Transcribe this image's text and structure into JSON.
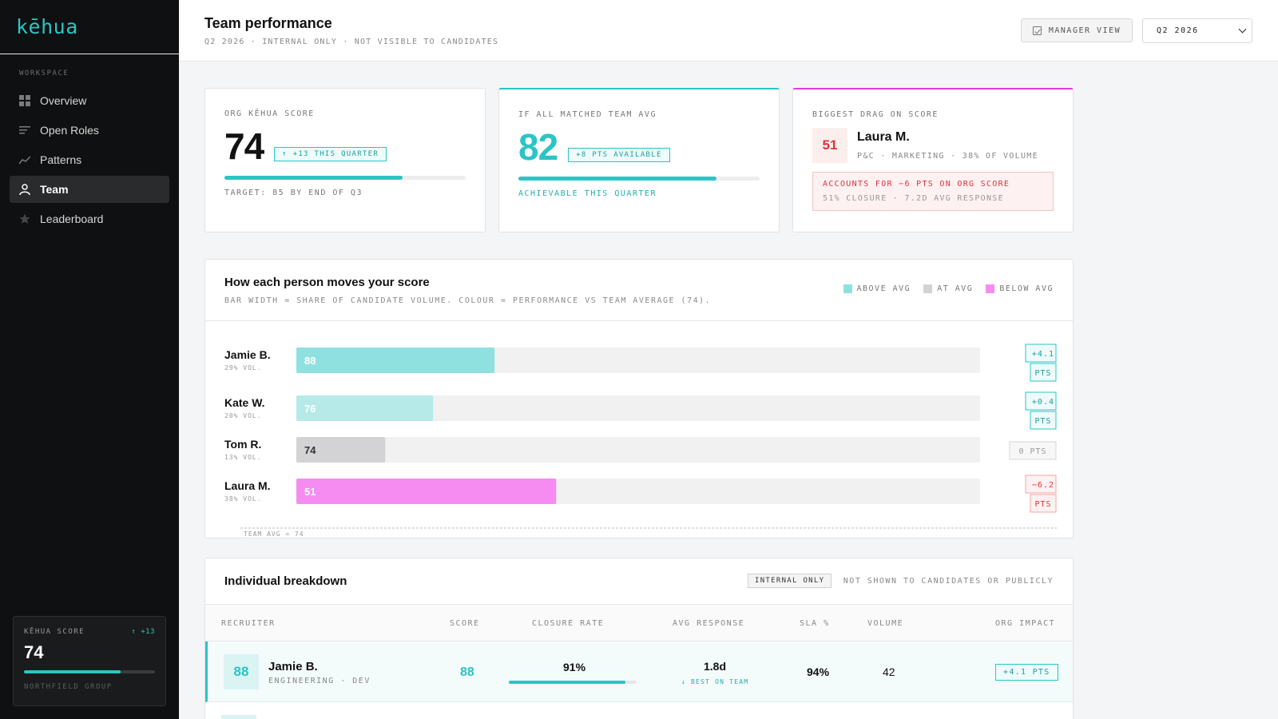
{
  "brand": {
    "name": "kēhua"
  },
  "sidebar": {
    "section_label": "WORKSPACE",
    "items": [
      {
        "label": "Overview",
        "icon": "grid-icon",
        "active": false
      },
      {
        "label": "Open Roles",
        "icon": "list-icon",
        "active": false
      },
      {
        "label": "Patterns",
        "icon": "trend-icon",
        "active": false
      },
      {
        "label": "Team",
        "icon": "user-icon",
        "active": true
      },
      {
        "label": "Leaderboard",
        "icon": "star-icon",
        "active": false
      }
    ],
    "score_box": {
      "label": "KĒHUA SCORE",
      "delta": "↑ +13",
      "value": "74",
      "progress": 0.74,
      "org": "NORTHFIELD GROUP"
    }
  },
  "header": {
    "title": "Team performance",
    "subtitle": "Q2 2026 · INTERNAL ONLY · NOT VISIBLE TO CANDIDATES",
    "manager_view_label": "MANAGER VIEW",
    "quarter_select": "Q2 2026"
  },
  "kpis": {
    "org_score": {
      "label": "ORG KĒHUA SCORE",
      "value": "74",
      "tag": "↑ +13 THIS QUARTER",
      "progress": 0.74,
      "footer": "TARGET: 85 BY END OF Q3"
    },
    "team_avg": {
      "label": "IF ALL MATCHED TEAM AVG",
      "value": "82",
      "tag": "+8 PTS AVAILABLE",
      "progress": 0.82,
      "footer": "ACHIEVABLE THIS QUARTER"
    },
    "biggest_drag": {
      "label": "BIGGEST DRAG ON SCORE",
      "score": "51",
      "name": "Laura M.",
      "meta": "P&C · MARKETING · 38% OF VOLUME",
      "alert_line1": "ACCOUNTS FOR −6 PTS ON ORG SCORE",
      "alert_line2": "51% CLOSURE · 7.2D AVG RESPONSE"
    }
  },
  "chart": {
    "title": "How each person moves your score",
    "subtitle": "BAR WIDTH = SHARE OF CANDIDATE VOLUME. COLOUR = PERFORMANCE VS TEAM AVERAGE (74).",
    "legend": [
      {
        "label": "ABOVE AVG",
        "color": "#8fe1df"
      },
      {
        "label": "AT AVG",
        "color": "#d3d3d6"
      },
      {
        "label": "BELOW AVG",
        "color": "#f68cf2"
      }
    ],
    "avg_label": "TEAM AVG = 74"
  },
  "chart_data": {
    "type": "bar",
    "categories": [
      "Jamie B.",
      "Kate W.",
      "Tom R.",
      "Laura M."
    ],
    "vol_labels": [
      "29% VOL.",
      "20% VOL.",
      "13% VOL.",
      "38% VOL."
    ],
    "volume_share": [
      29,
      20,
      13,
      38
    ],
    "scores": [
      88,
      76,
      74,
      51
    ],
    "impact_labels": [
      "+4.1 PTS",
      "+0.4 PTS",
      "0 PTS",
      "−6.2 PTS"
    ],
    "status": [
      "above",
      "above",
      "at",
      "below"
    ],
    "team_avg": 74,
    "xlim": [
      0,
      100
    ],
    "colors": {
      "above": "#8fe1df",
      "above_light": "#b5eae9",
      "at": "#d3d3d6",
      "below": "#f68cf2"
    }
  },
  "table": {
    "title": "Individual breakdown",
    "badge": "INTERNAL ONLY",
    "note": "NOT SHOWN TO CANDIDATES OR PUBLICLY",
    "columns": [
      "RECRUITER",
      "SCORE",
      "CLOSURE RATE",
      "AVG RESPONSE",
      "SLA %",
      "VOLUME",
      "ORG IMPACT"
    ],
    "rows": [
      {
        "score": "88",
        "name": "Jamie B.",
        "team": "ENGINEERING · DEV",
        "closure": "91%",
        "closure_value": 0.91,
        "response": "1.8d",
        "response_note": "↓ BEST ON TEAM",
        "sla": "94%",
        "volume": "42",
        "impact": "+4.1 PTS"
      }
    ]
  }
}
